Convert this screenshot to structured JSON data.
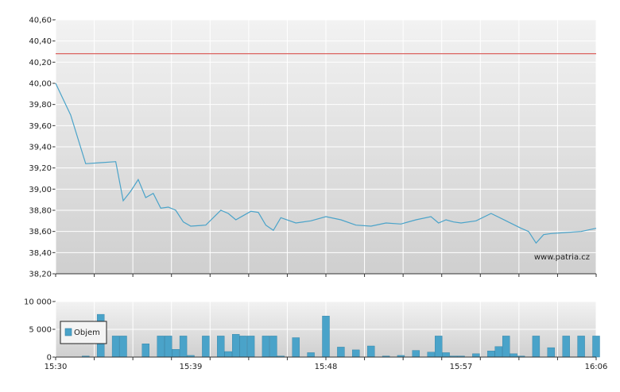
{
  "watermark": "www.patria.cz",
  "colors": {
    "price_line": "#4aa3c9",
    "reference_line": "#d9534f",
    "volume_bar": "#4aa3c9",
    "volume_bar_stroke": "#2f7fa3",
    "grid": "#ffffff",
    "plot_top": "#f2f2f2",
    "plot_bottom": "#cfcfcf"
  },
  "chart_data": [
    {
      "type": "line",
      "title": "",
      "xlabel": "",
      "ylabel": "",
      "ylim": [
        38.2,
        40.6
      ],
      "y_ticks": [
        "40,60",
        "40,40",
        "40,20",
        "40,00",
        "39,80",
        "39,60",
        "39,40",
        "39,20",
        "39,00",
        "38,80",
        "38,60",
        "38,40",
        "38,20"
      ],
      "y_tick_values": [
        40.6,
        40.4,
        40.2,
        40.0,
        39.8,
        39.6,
        39.4,
        39.2,
        39.0,
        38.8,
        38.6,
        38.4,
        38.2
      ],
      "reference_line": 40.28,
      "x_range_minutes": [
        0,
        36
      ],
      "x_gridlines_minutes": [
        0,
        2.5714,
        5.1429,
        7.7143,
        10.2857,
        12.8571,
        15.4286,
        18,
        20.5714,
        23.1429,
        25.7143,
        28.2857,
        30.8571,
        33.4286,
        36
      ],
      "series": [
        {
          "x": [
            0,
            1,
            2,
            3,
            4,
            4.5,
            5,
            5.5,
            6,
            6.5,
            7,
            7.5,
            8,
            8.5,
            9,
            10,
            11,
            11.5,
            12,
            12.5,
            13,
            13.5,
            14,
            14.5,
            15,
            16,
            17,
            18,
            19,
            20,
            21,
            22,
            23,
            24,
            25,
            25.5,
            26,
            26.5,
            27,
            28,
            29,
            30,
            31,
            31.5,
            32,
            32.5,
            33,
            34,
            35,
            36
          ],
          "y": [
            40.0,
            39.7,
            39.24,
            39.25,
            39.26,
            38.89,
            38.98,
            39.09,
            38.92,
            38.96,
            38.82,
            38.83,
            38.8,
            38.69,
            38.65,
            38.66,
            38.8,
            38.77,
            38.71,
            38.75,
            38.79,
            38.78,
            38.66,
            38.61,
            38.73,
            38.68,
            38.7,
            38.74,
            38.71,
            38.66,
            38.65,
            38.68,
            38.67,
            38.71,
            38.74,
            38.68,
            38.71,
            38.69,
            38.68,
            38.7,
            38.77,
            38.7,
            38.63,
            38.6,
            38.49,
            38.57,
            38.58,
            38.59,
            38.6,
            38.63
          ]
        }
      ]
    },
    {
      "type": "bar",
      "title": "",
      "xlabel": "",
      "ylabel": "",
      "ylim": [
        0,
        10000
      ],
      "y_ticks": [
        "10 000",
        "5 000",
        "0"
      ],
      "y_tick_values": [
        10000,
        5000,
        0
      ],
      "x_ticks": [
        "15:30",
        "15:39",
        "15:48",
        "15:57",
        "16:06"
      ],
      "x_tick_minutes": [
        0,
        9,
        18,
        27,
        36
      ],
      "legend": {
        "entries": [
          "Objem"
        ],
        "placement": "left"
      },
      "series": [
        {
          "name": "Objem",
          "x": [
            2,
            3,
            4,
            4.5,
            6,
            7,
            7.5,
            8,
            8.5,
            9,
            10,
            11,
            11.5,
            12,
            12.5,
            13,
            14,
            14.5,
            15,
            16,
            17,
            18,
            19,
            20,
            21,
            22,
            23,
            24,
            25,
            25.5,
            26,
            26.5,
            27,
            28,
            29,
            29.5,
            30,
            30.5,
            31,
            32,
            33,
            34,
            35,
            36
          ],
          "values": [
            200,
            7700,
            3800,
            3800,
            2400,
            3800,
            3800,
            1400,
            3800,
            300,
            3800,
            3800,
            1000,
            4100,
            3800,
            3800,
            3800,
            3800,
            200,
            3500,
            800,
            7400,
            1800,
            1300,
            2000,
            200,
            300,
            1200,
            900,
            3800,
            800,
            200,
            200,
            600,
            1100,
            1900,
            3800,
            600,
            200,
            3800,
            1700,
            3800,
            3800,
            3800
          ]
        }
      ]
    }
  ]
}
